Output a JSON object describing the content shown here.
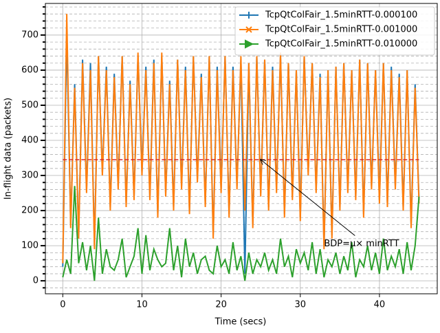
{
  "chart_data": {
    "type": "line",
    "xlabel": "Time (secs)",
    "ylabel": "In-flight data (packets)",
    "x": [
      0,
      0.5,
      1,
      1.5,
      2,
      2.5,
      3,
      3.5,
      4,
      4.5,
      5,
      5.5,
      6,
      6.5,
      7,
      7.5,
      8,
      8.5,
      9,
      9.5,
      10,
      10.5,
      11,
      11.5,
      12,
      12.5,
      13,
      13.5,
      14,
      14.5,
      15,
      15.5,
      16,
      16.5,
      17,
      17.5,
      18,
      18.5,
      19,
      19.5,
      20,
      20.5,
      21,
      21.5,
      22,
      22.5,
      23,
      23.5,
      24,
      24.5,
      25,
      25.5,
      26,
      26.5,
      27,
      27.5,
      28,
      28.5,
      29,
      29.5,
      30,
      30.5,
      31,
      31.5,
      32,
      32.5,
      33,
      33.5,
      34,
      34.5,
      35,
      35.5,
      36,
      36.5,
      37,
      37.5,
      38,
      38.5,
      39,
      39.5,
      40,
      40.5,
      41,
      41.5,
      42,
      42.5,
      43,
      43.5,
      44,
      44.5,
      45
    ],
    "series": [
      {
        "name": "TcpQtColFair_1.5minRTT-0.000100",
        "color": "#1f77b4",
        "values": [
          40,
          700,
          160,
          560,
          130,
          630,
          260,
          620,
          100,
          640,
          310,
          610,
          210,
          590,
          270,
          640,
          220,
          570,
          240,
          640,
          310,
          610,
          240,
          630,
          190,
          640,
          250,
          570,
          210,
          630,
          270,
          610,
          200,
          640,
          290,
          590,
          220,
          640,
          130,
          610,
          260,
          640,
          190,
          610,
          270,
          630,
          20,
          620,
          160,
          640,
          250,
          630,
          210,
          610,
          260,
          640,
          190,
          620,
          240,
          600,
          180,
          640,
          310,
          620,
          260,
          590,
          100,
          600,
          130,
          610,
          210,
          620,
          260,
          600,
          240,
          630,
          190,
          620,
          270,
          600,
          230,
          620,
          220,
          610,
          270,
          590,
          210,
          600,
          160,
          560,
          230
        ]
      },
      {
        "name": "TcpQtColFair_1.5minRTT-0.001000",
        "color": "#ff7f0e",
        "values": [
          50,
          760,
          150,
          550,
          120,
          620,
          250,
          600,
          90,
          640,
          300,
          600,
          200,
          580,
          260,
          640,
          210,
          560,
          230,
          650,
          300,
          600,
          230,
          620,
          180,
          650,
          240,
          560,
          200,
          630,
          260,
          600,
          190,
          640,
          280,
          580,
          210,
          640,
          120,
          600,
          250,
          640,
          180,
          600,
          260,
          640,
          200,
          620,
          150,
          640,
          240,
          630,
          200,
          600,
          250,
          650,
          180,
          620,
          230,
          600,
          170,
          640,
          300,
          620,
          250,
          580,
          90,
          600,
          120,
          610,
          200,
          620,
          250,
          600,
          230,
          630,
          180,
          620,
          260,
          600,
          220,
          620,
          210,
          600,
          260,
          580,
          200,
          600,
          150,
          550,
          220
        ]
      },
      {
        "name": "TcpQtColFair_1.5minRTT-0.010000",
        "color": "#2ca02c",
        "values": [
          10,
          60,
          20,
          270,
          50,
          110,
          30,
          100,
          0,
          180,
          20,
          90,
          40,
          30,
          60,
          120,
          10,
          40,
          70,
          150,
          20,
          130,
          30,
          90,
          60,
          40,
          50,
          150,
          30,
          100,
          10,
          120,
          40,
          80,
          20,
          60,
          70,
          30,
          20,
          100,
          40,
          60,
          20,
          110,
          30,
          70,
          0,
          80,
          20,
          60,
          40,
          80,
          30,
          60,
          20,
          120,
          40,
          70,
          10,
          90,
          50,
          80,
          30,
          110,
          20,
          90,
          10,
          60,
          40,
          80,
          20,
          70,
          30,
          110,
          10,
          60,
          40,
          100,
          30,
          80,
          20,
          120,
          30,
          70,
          40,
          90,
          20,
          110,
          30,
          100,
          240
        ]
      }
    ],
    "xlim": [
      -2.2,
      47.3
    ],
    "ylim": [
      -37,
      790
    ],
    "xticks": [
      0,
      10,
      20,
      30,
      40
    ],
    "yticks": [
      0,
      100,
      200,
      300,
      400,
      500,
      600,
      700
    ],
    "yticks_minor": [
      -20,
      20,
      40,
      60,
      80,
      120,
      140,
      160,
      180,
      220,
      240,
      260,
      280,
      320,
      340,
      360,
      380,
      420,
      440,
      460,
      480,
      520,
      540,
      560,
      580,
      620,
      640,
      660,
      680,
      720,
      740,
      760,
      780
    ],
    "grid": true,
    "legend": "upper right",
    "bdp_line": {
      "value": 345,
      "x": [
        0,
        45
      ],
      "color": "#d62728"
    },
    "annotation": {
      "text": "BDP=μ× minRTT",
      "xy": [
        25,
        345
      ],
      "xytext": [
        33,
        105
      ]
    }
  }
}
